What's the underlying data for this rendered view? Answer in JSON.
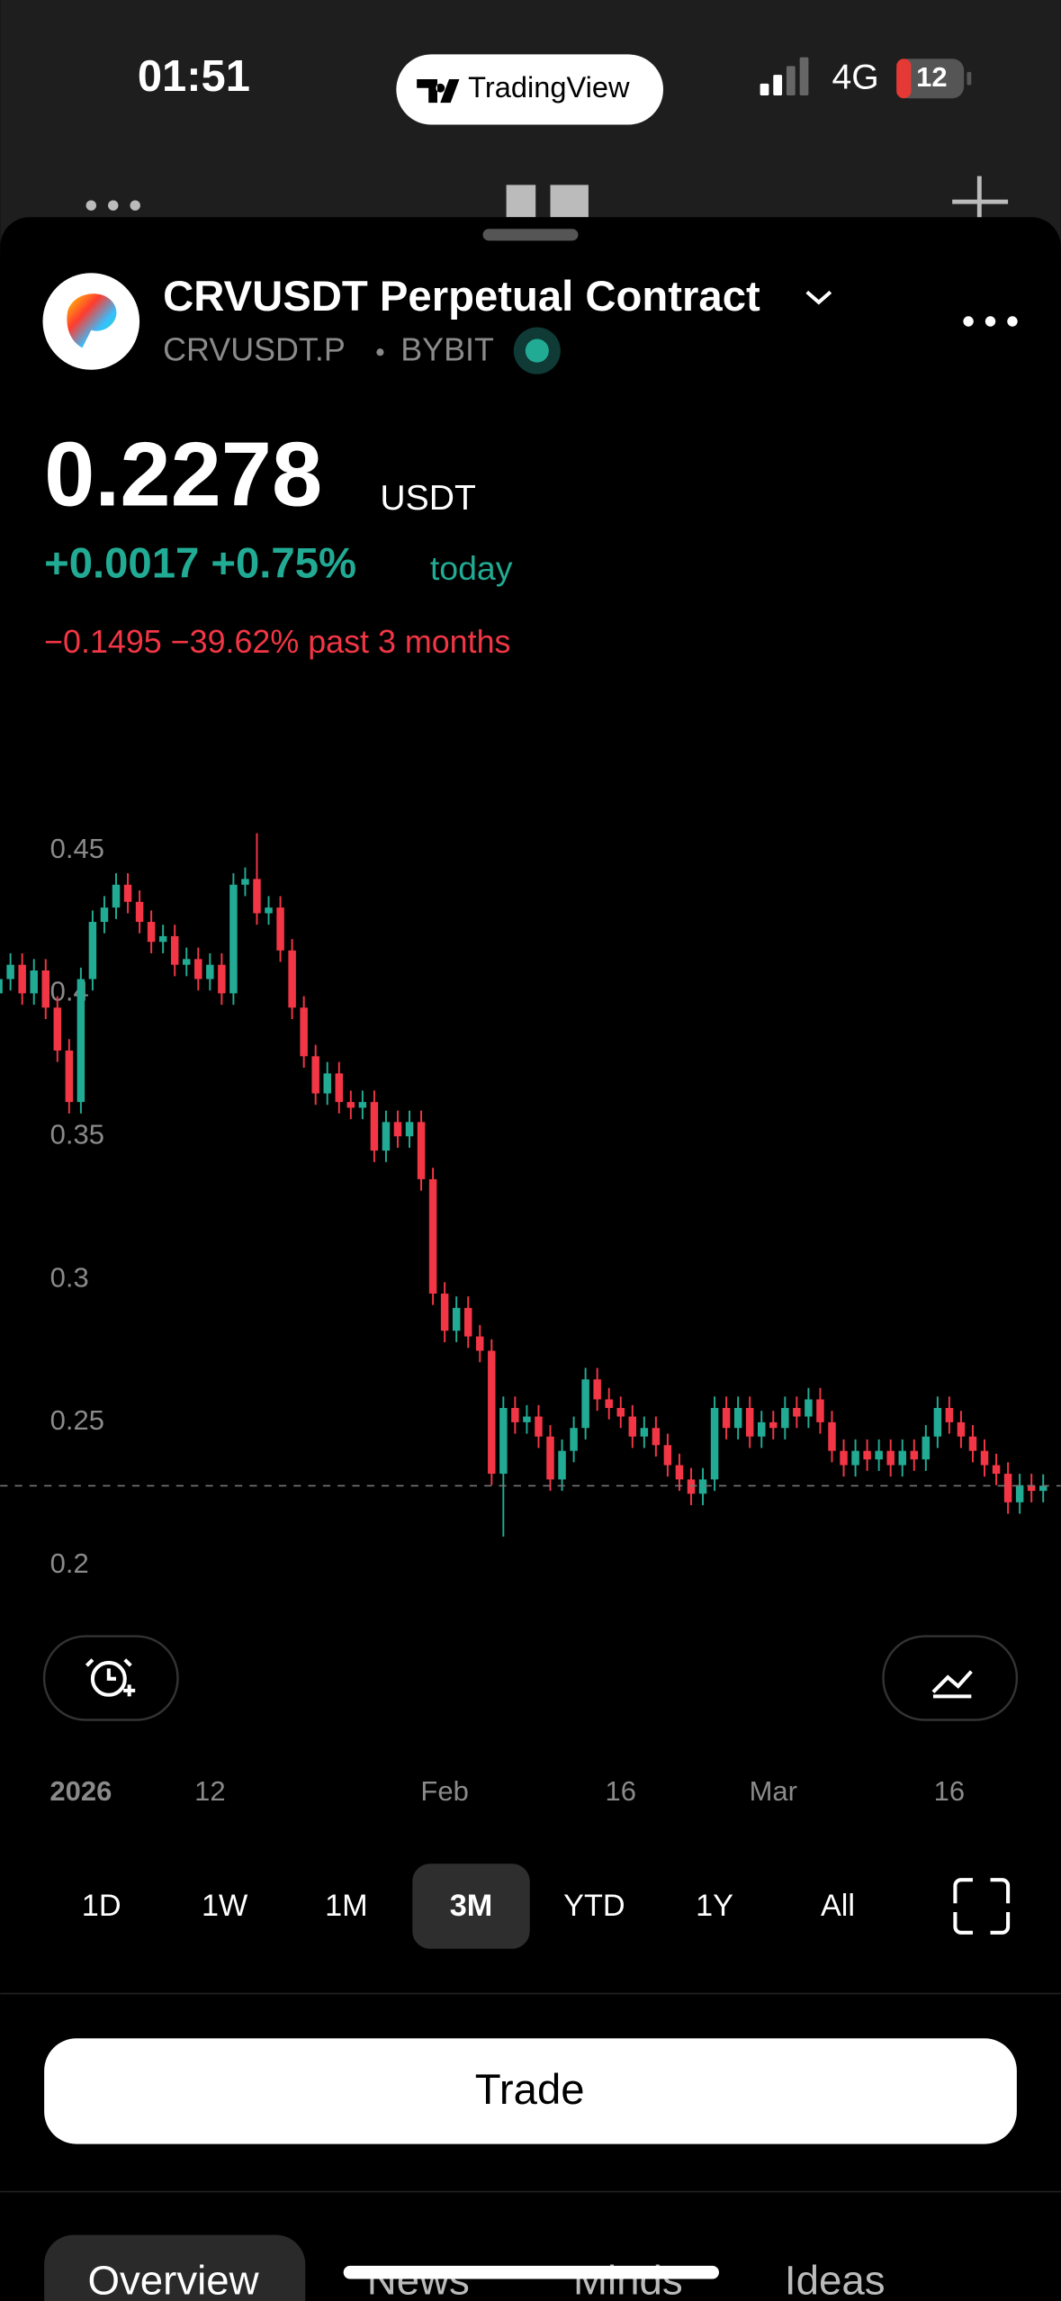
{
  "status_bar": {
    "time": "01:51",
    "app": "TradingView",
    "network": "4G",
    "battery": "12"
  },
  "header": {
    "title": "CRVUSDT Perpetual Contract",
    "symbol": "CRVUSDT.P",
    "exchange": "BYBIT"
  },
  "quote": {
    "price": 0.2278,
    "currency": "USDT",
    "change_today": "+0.0017 +0.75%",
    "today_label": "today",
    "change_period": "−0.1495 −39.62% past 3 months"
  },
  "chart_data": {
    "type": "candlestick",
    "up_color": "#22ab94",
    "down_color": "#f23645",
    "last_price": 0.2278,
    "categories": [
      null,
      null,
      null,
      null,
      null,
      null,
      null,
      "2026",
      null,
      null,
      null,
      null,
      null,
      null,
      null,
      null,
      null,
      null,
      "12",
      null,
      null,
      null,
      null,
      null,
      null,
      null,
      null,
      null,
      null,
      null,
      null,
      null,
      null,
      null,
      null,
      null,
      null,
      null,
      "Feb",
      null,
      null,
      null,
      null,
      null,
      null,
      null,
      null,
      null,
      null,
      null,
      null,
      null,
      null,
      "16",
      null,
      null,
      null,
      null,
      null,
      null,
      null,
      null,
      null,
      null,
      null,
      null,
      "Mar",
      null,
      null,
      null,
      null,
      null,
      null,
      null,
      null,
      null,
      null,
      null,
      null,
      null,
      null,
      "16",
      null,
      null,
      null,
      null,
      null,
      null,
      null,
      null
    ],
    "open": [
      0.4,
      0.405,
      0.41,
      0.4,
      0.408,
      0.395,
      0.38,
      0.362,
      0.405,
      0.425,
      0.43,
      0.438,
      0.432,
      0.425,
      0.418,
      0.42,
      0.41,
      0.412,
      0.405,
      0.41,
      0.4,
      0.438,
      0.44,
      0.428,
      0.43,
      0.415,
      0.395,
      0.378,
      0.365,
      0.372,
      0.362,
      0.36,
      0.362,
      0.345,
      0.355,
      0.35,
      0.355,
      0.335,
      0.295,
      0.282,
      0.29,
      0.28,
      0.275,
      0.232,
      0.255,
      0.25,
      0.252,
      0.245,
      0.23,
      0.24,
      0.248,
      0.265,
      0.258,
      0.255,
      0.252,
      0.245,
      0.248,
      0.242,
      0.235,
      0.23,
      0.225,
      0.23,
      0.255,
      0.248,
      0.255,
      0.245,
      0.25,
      0.248,
      0.255,
      0.252,
      0.258,
      0.25,
      0.24,
      0.235,
      0.24,
      0.237,
      0.24,
      0.235,
      0.24,
      0.237,
      0.245,
      0.255,
      0.25,
      0.245,
      0.24,
      0.235,
      0.232,
      0.222,
      0.228,
      0.226
    ],
    "high": [
      0.409,
      0.414,
      0.414,
      0.412,
      0.412,
      0.399,
      0.384,
      0.409,
      0.429,
      0.434,
      0.442,
      0.442,
      0.436,
      0.429,
      0.424,
      0.424,
      0.416,
      0.416,
      0.414,
      0.414,
      0.442,
      0.444,
      0.456,
      0.434,
      0.434,
      0.419,
      0.399,
      0.382,
      0.376,
      0.376,
      0.366,
      0.366,
      0.366,
      0.359,
      0.359,
      0.359,
      0.359,
      0.339,
      0.299,
      0.294,
      0.294,
      0.284,
      0.279,
      0.259,
      0.259,
      0.256,
      0.256,
      0.249,
      0.244,
      0.252,
      0.269,
      0.269,
      0.262,
      0.259,
      0.256,
      0.252,
      0.252,
      0.246,
      0.239,
      0.234,
      0.234,
      0.259,
      0.259,
      0.259,
      0.259,
      0.254,
      0.254,
      0.259,
      0.259,
      0.262,
      0.262,
      0.254,
      0.244,
      0.244,
      0.244,
      0.244,
      0.244,
      0.244,
      0.244,
      0.249,
      0.259,
      0.259,
      0.254,
      0.249,
      0.244,
      0.239,
      0.236,
      0.232,
      0.232,
      0.2318
    ],
    "low": [
      0.396,
      0.401,
      0.396,
      0.396,
      0.391,
      0.376,
      0.358,
      0.358,
      0.401,
      0.421,
      0.426,
      0.428,
      0.421,
      0.414,
      0.414,
      0.406,
      0.406,
      0.401,
      0.401,
      0.396,
      0.396,
      0.434,
      0.424,
      0.424,
      0.411,
      0.391,
      0.374,
      0.361,
      0.361,
      0.358,
      0.356,
      0.356,
      0.341,
      0.341,
      0.346,
      0.346,
      0.331,
      0.291,
      0.278,
      0.278,
      0.276,
      0.271,
      0.228,
      0.21,
      0.246,
      0.246,
      0.241,
      0.226,
      0.226,
      0.236,
      0.244,
      0.254,
      0.251,
      0.248,
      0.241,
      0.241,
      0.238,
      0.231,
      0.226,
      0.221,
      0.221,
      0.226,
      0.244,
      0.244,
      0.241,
      0.241,
      0.244,
      0.244,
      0.248,
      0.248,
      0.246,
      0.236,
      0.231,
      0.231,
      0.233,
      0.233,
      0.231,
      0.231,
      0.233,
      0.233,
      0.241,
      0.246,
      0.241,
      0.236,
      0.231,
      0.228,
      0.218,
      0.218,
      0.222,
      0.222
    ],
    "close": [
      0.405,
      0.41,
      0.4,
      0.408,
      0.395,
      0.38,
      0.362,
      0.405,
      0.425,
      0.43,
      0.438,
      0.432,
      0.425,
      0.418,
      0.42,
      0.41,
      0.412,
      0.405,
      0.41,
      0.4,
      0.438,
      0.44,
      0.428,
      0.43,
      0.415,
      0.395,
      0.378,
      0.365,
      0.372,
      0.362,
      0.36,
      0.362,
      0.345,
      0.355,
      0.35,
      0.355,
      0.335,
      0.295,
      0.282,
      0.29,
      0.28,
      0.275,
      0.232,
      0.255,
      0.25,
      0.252,
      0.245,
      0.23,
      0.24,
      0.248,
      0.265,
      0.258,
      0.255,
      0.252,
      0.245,
      0.248,
      0.242,
      0.235,
      0.23,
      0.225,
      0.23,
      0.255,
      0.248,
      0.255,
      0.245,
      0.25,
      0.248,
      0.255,
      0.252,
      0.258,
      0.25,
      0.24,
      0.235,
      0.24,
      0.237,
      0.24,
      0.235,
      0.24,
      0.237,
      0.245,
      0.255,
      0.25,
      0.245,
      0.24,
      0.235,
      0.232,
      0.222,
      0.228,
      0.226,
      0.2278
    ],
    "ylim": [
      0.188,
      0.46
    ],
    "yticks": [
      0.45,
      0.4,
      0.35,
      0.3,
      0.25,
      0.2
    ]
  },
  "ranges": {
    "items": [
      "1D",
      "1W",
      "1M",
      "3M",
      "YTD",
      "1Y",
      "All"
    ],
    "active": "3M"
  },
  "trade_button": "Trade",
  "tabs": [
    "Overview",
    "News",
    "Minds",
    "Ideas"
  ]
}
